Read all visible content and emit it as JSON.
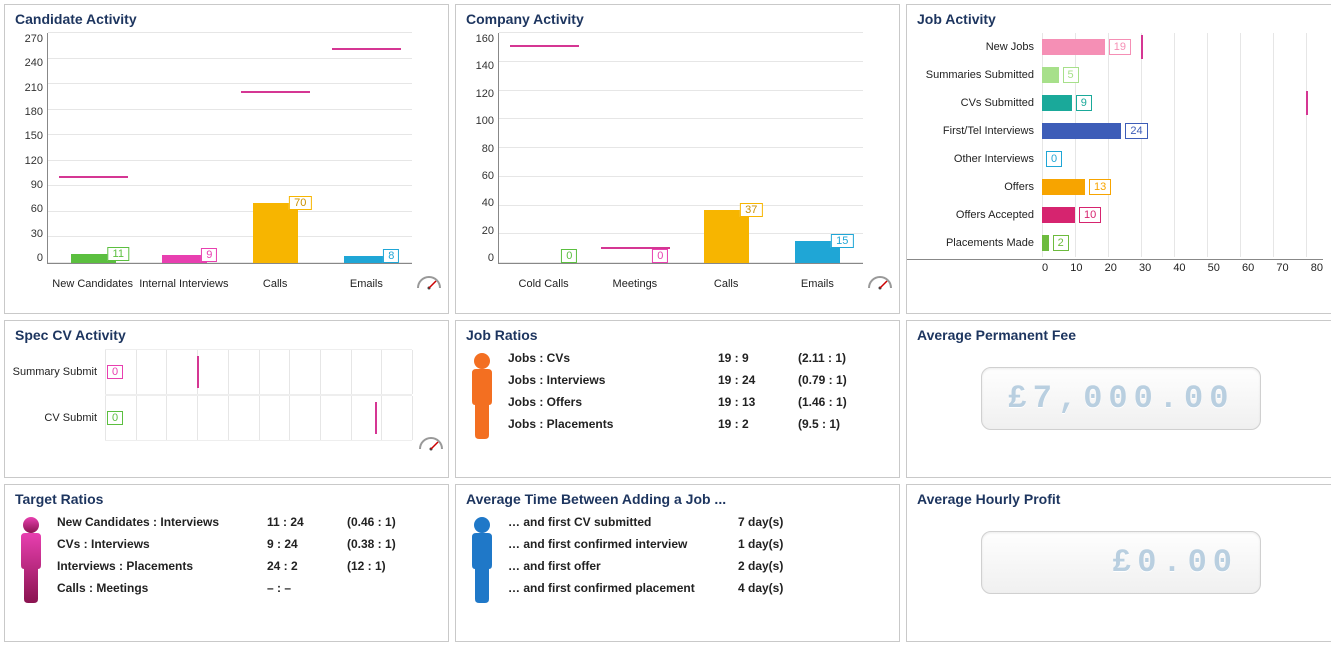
{
  "candidate_activity": {
    "title": "Candidate Activity",
    "ymax": 270,
    "ytick_step": 30,
    "yticks": [
      "270",
      "240",
      "210",
      "180",
      "150",
      "120",
      "90",
      "60",
      "30",
      "0"
    ],
    "bars": [
      {
        "label": "New Candidates",
        "value": 11,
        "value_s": "11",
        "color": "#5bbf3f",
        "target": 100,
        "target_color": "#d53693"
      },
      {
        "label": "Internal Interviews",
        "value": 9,
        "value_s": "9",
        "color": "#e83fb0",
        "target": null
      },
      {
        "label": "Calls",
        "value": 70,
        "value_s": "70",
        "color": "#f7b500",
        "target": 200,
        "target_color": "#d53693"
      },
      {
        "label": "Emails",
        "value": 8,
        "value_s": "8",
        "color": "#1fa6d6",
        "target": 250,
        "target_color": "#d53693"
      }
    ]
  },
  "company_activity": {
    "title": "Company Activity",
    "ymax": 160,
    "ytick_step": 20,
    "yticks": [
      "160",
      "140",
      "120",
      "100",
      "80",
      "60",
      "40",
      "20",
      "0"
    ],
    "bars": [
      {
        "label": "Cold Calls",
        "value": 0,
        "value_s": "0",
        "color": "#5bbf3f",
        "target": 150,
        "target_color": "#d53693"
      },
      {
        "label": "Meetings",
        "value": 0,
        "value_s": "0",
        "color": "#e83fb0",
        "target": 10,
        "target_color": "#d53693"
      },
      {
        "label": "Calls",
        "value": 37,
        "value_s": "37",
        "color": "#f7b500",
        "target": null
      },
      {
        "label": "Emails",
        "value": 15,
        "value_s": "15",
        "color": "#1fa6d6",
        "target": null
      }
    ]
  },
  "job_activity": {
    "title": "Job Activity",
    "xmax": 85,
    "xticks": [
      "0",
      "10",
      "20",
      "30",
      "40",
      "50",
      "60",
      "70",
      "80"
    ],
    "rows": [
      {
        "label": "New Jobs",
        "value": 19,
        "value_s": "19",
        "color": "#f58fb5",
        "target": 30,
        "target_color": "#d53693"
      },
      {
        "label": "Summaries Submitted",
        "value": 5,
        "value_s": "5",
        "color": "#a7e08a",
        "target": null
      },
      {
        "label": "CVs Submitted",
        "value": 9,
        "value_s": "9",
        "color": "#1aa99a",
        "target": 80,
        "target_color": "#d53693"
      },
      {
        "label": "First/Tel Interviews",
        "value": 24,
        "value_s": "24",
        "color": "#3d5db8",
        "target": null
      },
      {
        "label": "Other Interviews",
        "value": 0,
        "value_s": "0",
        "color": "#1fa6d6",
        "target": null
      },
      {
        "label": "Offers",
        "value": 13,
        "value_s": "13",
        "color": "#f7a400",
        "target": null
      },
      {
        "label": "Offers Accepted",
        "value": 10,
        "value_s": "10",
        "color": "#d6246f",
        "target": null
      },
      {
        "label": "Placements Made",
        "value": 2,
        "value_s": "2",
        "color": "#6dbb3e",
        "target": null
      }
    ]
  },
  "spec_cv": {
    "title": "Spec CV Activity",
    "rows": [
      {
        "label": "Summary Submit",
        "value": 0,
        "value_s": "0",
        "color": "#e83fb0",
        "target_pct": 30,
        "target_color": "#d53693"
      },
      {
        "label": "CV Submit",
        "value": 0,
        "value_s": "0",
        "color": "#5bbf3f",
        "target_pct": 88,
        "target_color": "#d53693"
      }
    ]
  },
  "job_ratios": {
    "title": "Job Ratios",
    "icon_color": "#f36f21",
    "rows": [
      {
        "name": "Jobs : CVs",
        "raw": "19 : 9",
        "norm": "(2.11 : 1)"
      },
      {
        "name": "Jobs : Interviews",
        "raw": "19 : 24",
        "norm": "(0.79 : 1)"
      },
      {
        "name": "Jobs : Offers",
        "raw": "19 : 13",
        "norm": "(1.46 : 1)"
      },
      {
        "name": "Jobs : Placements",
        "raw": "19 : 2",
        "norm": "(9.5 : 1)"
      }
    ]
  },
  "target_ratios": {
    "title": "Target Ratios",
    "icon_color_top": "#e83fb0",
    "icon_color_bot": "#8a1450",
    "rows": [
      {
        "name": "New Candidates : Interviews",
        "raw": "11 : 24",
        "norm": "(0.46 : 1)"
      },
      {
        "name": "CVs : Interviews",
        "raw": "9 : 24",
        "norm": "(0.38 : 1)"
      },
      {
        "name": "Interviews : Placements",
        "raw": "24 : 2",
        "norm": "(12 : 1)"
      },
      {
        "name": "Calls : Meetings",
        "raw": "– : –",
        "norm": ""
      }
    ]
  },
  "avg_time": {
    "title": "Average Time Between Adding a Job ...",
    "icon_color": "#1f78c8",
    "rows": [
      {
        "name": "… and first CV submitted",
        "val": "7 day(s)"
      },
      {
        "name": "… and first confirmed interview",
        "val": "1 day(s)"
      },
      {
        "name": "… and first offer",
        "val": "2 day(s)"
      },
      {
        "name": "… and first confirmed placement",
        "val": "4 day(s)"
      }
    ]
  },
  "avg_perm_fee": {
    "title": "Average Permanent Fee",
    "value": "£7,000.00",
    "color": "#b9cfe0",
    "align": "center"
  },
  "avg_hourly_profit": {
    "title": "Average Hourly Profit",
    "value": "£0.00",
    "color": "#b9cfe0",
    "align": "right"
  }
}
